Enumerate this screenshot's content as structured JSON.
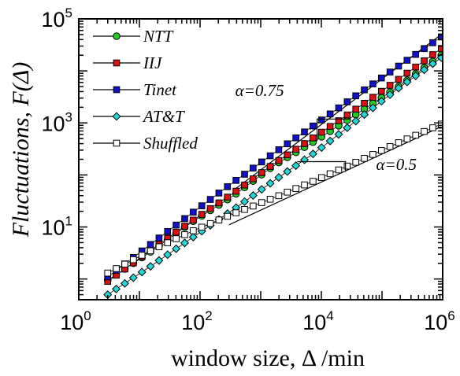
{
  "chart_data": {
    "type": "scatter",
    "title": "",
    "xlabel": "window size, Δ /min",
    "ylabel": "Fluctuations, F(Δ)",
    "xscale": "log",
    "yscale": "log",
    "xlim": [
      1,
      1000000
    ],
    "ylim": [
      0.4,
      100000
    ],
    "x_ticks": [
      {
        "base": "10",
        "exp": "0",
        "value": 1
      },
      {
        "base": "10",
        "exp": "2",
        "value": 100
      },
      {
        "base": "10",
        "exp": "4",
        "value": 10000
      },
      {
        "base": "10",
        "exp": "6",
        "value": 1000000
      }
    ],
    "y_ticks": [
      {
        "base": "10",
        "exp": "1",
        "value": 10
      },
      {
        "base": "10",
        "exp": "3",
        "value": 1000
      },
      {
        "base": "10",
        "exp": "5",
        "value": 100000
      }
    ],
    "legend_position": "top-left",
    "series": [
      {
        "name": "NTT",
        "marker": "circle",
        "color": "#22cc22",
        "filled": true,
        "start": 3,
        "end": 950000,
        "y_start": 0.95,
        "y_end": 23000,
        "noise": [
          0,
          -0.02,
          0.01,
          -0.03,
          0.02,
          -0.05,
          -0.08,
          -0.1,
          -0.06
        ]
      },
      {
        "name": "IIJ",
        "marker": "square",
        "color": "#dd1111",
        "filled": true,
        "start": 3,
        "end": 950000,
        "y_start": 0.9,
        "y_end": 27000,
        "noise": [
          0,
          0.02,
          0.03,
          0.01,
          0.03,
          0.0,
          -0.02,
          -0.02,
          0
        ]
      },
      {
        "name": "Tinet",
        "marker": "square",
        "color": "#1111cc",
        "filled": true,
        "start": 3,
        "end": 950000,
        "y_start": 1.1,
        "y_end": 45000,
        "noise": [
          0,
          0.03,
          0.06,
          0.08,
          0.08,
          0.06,
          0.05,
          0.03,
          0
        ]
      },
      {
        "name": "AT&T",
        "marker": "diamond",
        "color": "#22d8d8",
        "filled": true,
        "start": 3,
        "end": 950000,
        "y_start": 0.5,
        "y_end": 18000,
        "noise": [
          0,
          -0.04,
          -0.06,
          -0.08,
          -0.08,
          -0.1,
          -0.05,
          0.0,
          0
        ]
      },
      {
        "name": "Shuffled",
        "marker": "square",
        "color": "#ffffff",
        "filled": false,
        "start": 3,
        "end": 950000,
        "y_start": 1.3,
        "y_end": 950,
        "noise": [
          0,
          0.06,
          0.08,
          0.06,
          0.02,
          0.0,
          0.0,
          0.01,
          0
        ]
      }
    ],
    "fit_lines": [
      {
        "x": [
          350,
          950000
        ],
        "y": [
          50,
          50000
        ]
      },
      {
        "x": [
          300,
          950000
        ],
        "y": [
          11,
          850
        ]
      }
    ],
    "annotations": [
      {
        "text": "α=0.75",
        "x": 380,
        "y": 3300
      },
      {
        "text": "α=0.5",
        "x": 80000,
        "y": 125
      }
    ]
  }
}
